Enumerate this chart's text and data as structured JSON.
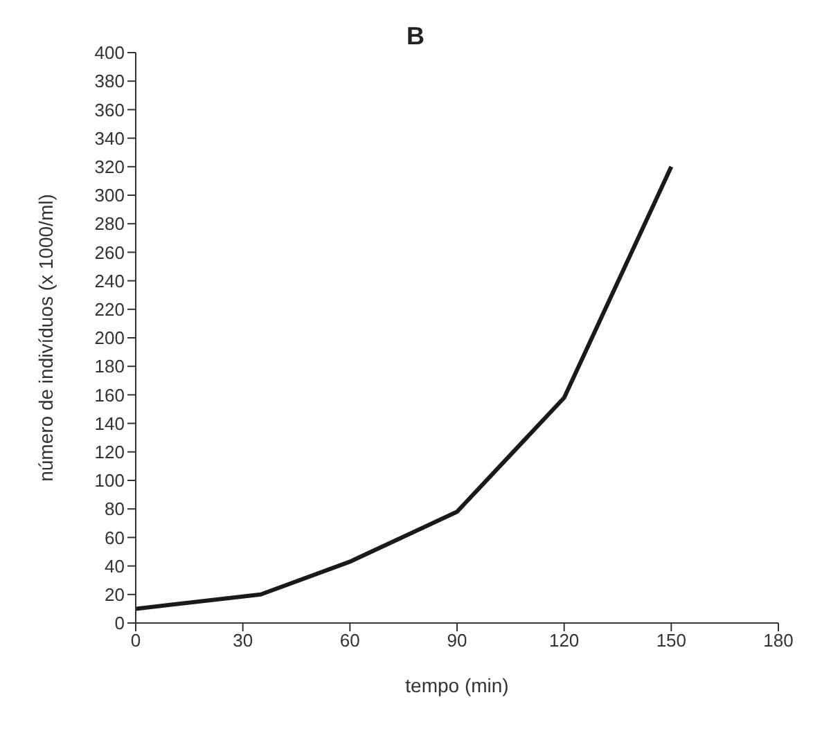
{
  "chart_data": {
    "type": "line",
    "title": "B",
    "xlabel": "tempo (min)",
    "ylabel": "número de indivíduos (x 1000/ml)",
    "x": [
      0,
      35,
      60,
      90,
      120,
      150
    ],
    "series": [
      {
        "color": "#1a1a1a",
        "values": [
          10,
          20,
          43,
          78,
          158,
          320
        ]
      }
    ],
    "xlim": [
      0,
      180
    ],
    "xticks": [
      0,
      30,
      60,
      90,
      120,
      150,
      180
    ],
    "ylim": [
      0,
      400
    ],
    "yticks": [
      0,
      20,
      40,
      60,
      80,
      100,
      120,
      140,
      160,
      180,
      200,
      220,
      240,
      260,
      280,
      300,
      320,
      340,
      360,
      380,
      400
    ],
    "grid": false,
    "legend": false,
    "marker": "none",
    "line_style": "solid"
  }
}
